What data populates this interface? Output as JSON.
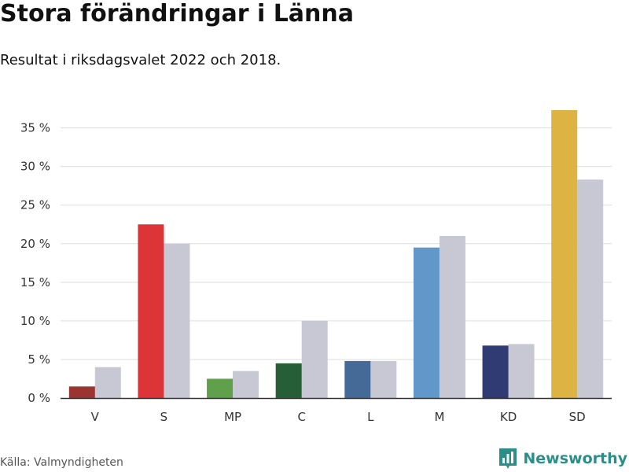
{
  "header": {
    "title": "Stora förändringar i Länna",
    "subtitle": "Resultat i riksdagsvalet 2022 och 2018."
  },
  "footer": {
    "source": "Källa: Valmyndigheten",
    "brand": "Newsworthy",
    "brand_icon": "bar-chart-logo-icon"
  },
  "colors": {
    "comparison_bar": "#c8c7d4",
    "grid": "#dddddd",
    "axis": "#333333",
    "brand": "#2a8f88"
  },
  "chart_data": {
    "type": "bar",
    "categories": [
      "V",
      "S",
      "MP",
      "C",
      "L",
      "M",
      "KD",
      "SD"
    ],
    "series": [
      {
        "values": [
          1.5,
          22.5,
          2.5,
          4.5,
          4.8,
          19.5,
          6.8,
          37.3
        ],
        "colors": [
          "#9b3532",
          "#dd3438",
          "#5fa14b",
          "#265f36",
          "#456a97",
          "#6298c9",
          "#2f3b72",
          "#ddb344"
        ]
      },
      {
        "values": [
          4.0,
          20.0,
          3.5,
          10.0,
          4.8,
          21.0,
          7.0,
          28.3
        ],
        "color": "#c8c7d4"
      }
    ],
    "yticks": [
      0,
      5,
      10,
      15,
      20,
      25,
      30,
      35
    ],
    "ytick_labels": [
      "0 %",
      "5 %",
      "10 %",
      "15 %",
      "20 %",
      "25 %",
      "30 %",
      "35 %"
    ],
    "ylim": [
      0,
      37.3
    ],
    "grid": true,
    "legend": false
  }
}
